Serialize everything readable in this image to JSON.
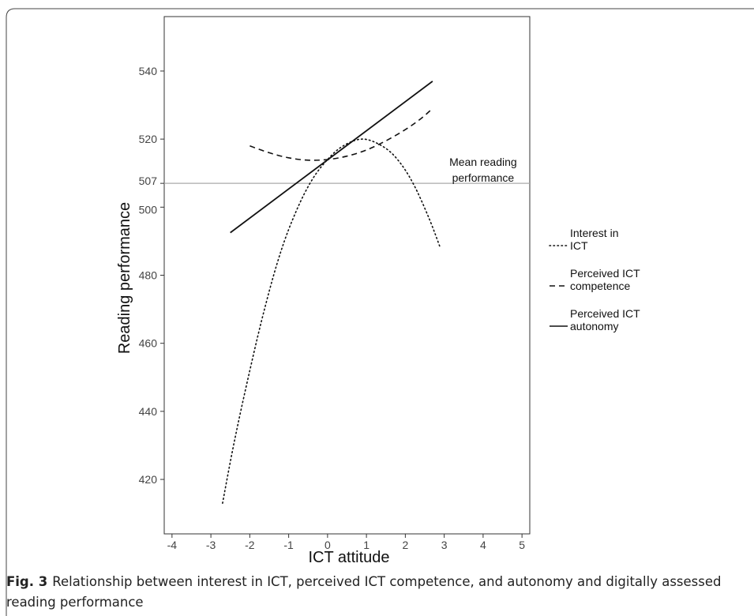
{
  "chart_data": {
    "type": "line",
    "xlabel": "ICT attitude",
    "ylabel": "Reading performance",
    "xlim": [
      -4.2,
      5.2
    ],
    "ylim": [
      404,
      556
    ],
    "x_ticks": [
      "-4",
      "-3",
      "-2",
      "-1",
      "0",
      "1",
      "2",
      "3",
      "4",
      "5"
    ],
    "y_ticks": [
      "420",
      "440",
      "460",
      "480",
      "500",
      "507",
      "520",
      "540"
    ],
    "grid": false,
    "legend_position": "right",
    "reference_line": {
      "y": 507,
      "label_line1": "Mean reading",
      "label_line2": "performance"
    },
    "series": [
      {
        "name_line1": "Interest in",
        "name_line2": "ICT",
        "style": "dotted",
        "curve": "quadratic",
        "points": [
          {
            "x": -2.7,
            "y": 413
          },
          {
            "x": -2.4,
            "y": 431
          },
          {
            "x": -2.0,
            "y": 452
          },
          {
            "x": -1.6,
            "y": 471
          },
          {
            "x": -1.2,
            "y": 487
          },
          {
            "x": -0.8,
            "y": 499
          },
          {
            "x": -0.4,
            "y": 508
          },
          {
            "x": 0.0,
            "y": 514
          },
          {
            "x": 0.4,
            "y": 518
          },
          {
            "x": 0.9,
            "y": 520
          },
          {
            "x": 1.4,
            "y": 518
          },
          {
            "x": 1.8,
            "y": 514
          },
          {
            "x": 2.2,
            "y": 507
          },
          {
            "x": 2.6,
            "y": 497
          },
          {
            "x": 2.9,
            "y": 488
          }
        ]
      },
      {
        "name_line1": "Perceived ICT",
        "name_line2": "competence",
        "style": "dashed",
        "curve": "quadratic",
        "points": [
          {
            "x": -2.0,
            "y": 518
          },
          {
            "x": -1.5,
            "y": 516
          },
          {
            "x": -1.0,
            "y": 514.5
          },
          {
            "x": -0.5,
            "y": 513.8
          },
          {
            "x": 0.0,
            "y": 514
          },
          {
            "x": 0.5,
            "y": 515
          },
          {
            "x": 1.0,
            "y": 516.8
          },
          {
            "x": 1.5,
            "y": 519.5
          },
          {
            "x": 2.0,
            "y": 522.8
          },
          {
            "x": 2.4,
            "y": 526
          },
          {
            "x": 2.7,
            "y": 529
          }
        ]
      },
      {
        "name_line1": "Perceived ICT",
        "name_line2": "autonomy",
        "style": "solid",
        "curve": "linear",
        "points": [
          {
            "x": -2.5,
            "y": 492.5
          },
          {
            "x": 2.7,
            "y": 537
          }
        ]
      }
    ]
  },
  "caption": {
    "label": "Fig. 3",
    "text": "Relationship between interest in ICT, perceived ICT competence, and autonomy and digitally assessed reading performance"
  }
}
